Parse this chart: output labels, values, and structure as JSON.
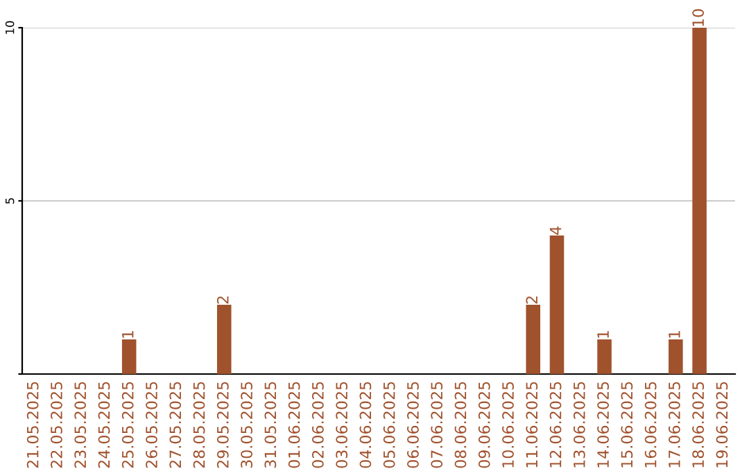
{
  "chart_data": {
    "type": "bar",
    "categories": [
      "21.05.2025",
      "22.05.2025",
      "23.05.2025",
      "24.05.2025",
      "25.05.2025",
      "26.05.2025",
      "27.05.2025",
      "28.05.2025",
      "29.05.2025",
      "30.05.2025",
      "31.05.2025",
      "01.06.2025",
      "02.06.2025",
      "03.06.2025",
      "04.06.2025",
      "05.06.2025",
      "06.06.2025",
      "07.06.2025",
      "08.06.2025",
      "09.06.2025",
      "10.06.2025",
      "11.06.2025",
      "12.06.2025",
      "13.06.2025",
      "14.06.2025",
      "15.06.2025",
      "16.06.2025",
      "17.06.2025",
      "18.06.2025",
      "19.06.2025"
    ],
    "values": [
      0,
      0,
      0,
      0,
      1,
      0,
      0,
      0,
      2,
      0,
      0,
      0,
      0,
      0,
      0,
      0,
      0,
      0,
      0,
      0,
      0,
      2,
      4,
      0,
      1,
      0,
      0,
      1,
      10,
      0
    ],
    "value_labels": [
      null,
      null,
      null,
      null,
      "1",
      null,
      null,
      null,
      "2",
      null,
      null,
      null,
      null,
      null,
      null,
      null,
      null,
      null,
      null,
      null,
      null,
      "2",
      "4",
      null,
      "1",
      null,
      null,
      "1",
      "10",
      null
    ],
    "color": "#a0522d",
    "ylim": [
      0,
      10
    ],
    "yticks": [
      {
        "value": 0,
        "label": null
      },
      5,
      10
    ],
    "grid": "y",
    "legend": false
  }
}
